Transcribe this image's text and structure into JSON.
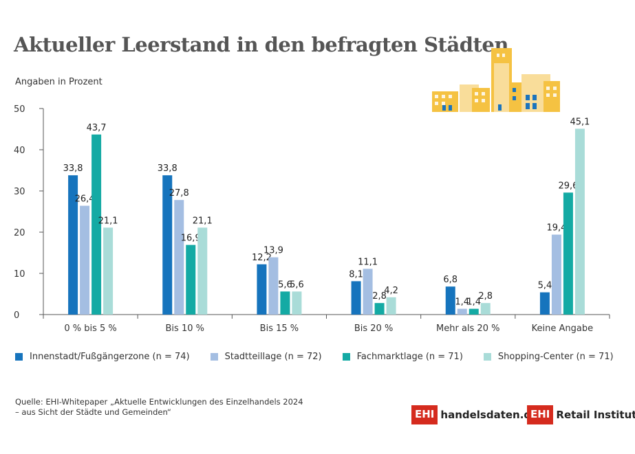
{
  "title": "Aktueller Leerstand in den befragten Städten",
  "subtitle": "Angaben in Prozent",
  "chart_data": {
    "type": "bar",
    "ylim": [
      0,
      50
    ],
    "yticks": [
      0,
      10,
      20,
      30,
      40,
      50
    ],
    "categories": [
      "0 % bis 5 %",
      "Bis 10 %",
      "Bis 15 %",
      "Bis 20 %",
      "Mehr als 20 %",
      "Keine Angabe"
    ],
    "series": [
      {
        "name": "Innenstadt/Fußgängerzone (n = 74)",
        "color": "#1674bd",
        "values": [
          33.8,
          33.8,
          12.2,
          8.1,
          6.8,
          5.4
        ],
        "labels": [
          "33,8",
          "33,8",
          "12,2",
          "8,1",
          "6,8",
          "5,4"
        ]
      },
      {
        "name": "Stadtteillage (n = 72)",
        "color": "#a4bee2",
        "values": [
          26.4,
          27.8,
          13.9,
          11.1,
          1.4,
          19.4
        ],
        "labels": [
          "26,4",
          "27,8",
          "13,9",
          "11,1",
          "1,4",
          "19,4"
        ]
      },
      {
        "name": "Fachmarktlage (n = 71)",
        "color": "#14aaa4",
        "values": [
          43.7,
          16.9,
          5.6,
          2.8,
          1.4,
          29.6
        ],
        "labels": [
          "43,7",
          "16,9",
          "5,6",
          "2,8",
          "1,4",
          "29,6"
        ]
      },
      {
        "name": "Shopping-Center (n = 71)",
        "color": "#a9dcd8",
        "values": [
          21.1,
          21.1,
          5.6,
          4.2,
          2.8,
          45.1
        ],
        "labels": [
          "21,1",
          "21,1",
          "5,6",
          "4,2",
          "2,8",
          "45,1"
        ]
      }
    ],
    "legend_position": "bottom",
    "grid": false
  },
  "source": {
    "line1": "Quelle: EHI-Whitepaper „Aktuelle Entwicklungen des Einzelhandels 2024",
    "line2": "– aus Sicht der Städte und Gemeinden“"
  },
  "logos": {
    "ehi_box": "EHI",
    "handelsdaten": "handelsdaten.de",
    "retail": "Retail Institute",
    "reg": "®"
  },
  "illustration": {
    "name": "city-buildings-icon",
    "colors": [
      "#f5c242",
      "#f9dd9a",
      "#1b74bd"
    ]
  }
}
